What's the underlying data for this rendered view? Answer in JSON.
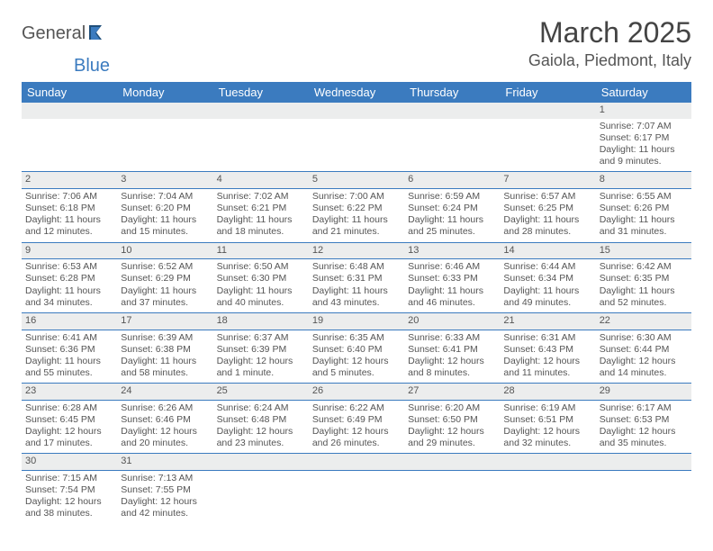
{
  "logo": {
    "text1": "General",
    "text2": "Blue"
  },
  "title": "March 2025",
  "location": "Gaiola, Piedmont, Italy",
  "colors": {
    "header_bg": "#3b7bbf",
    "header_text": "#ffffff",
    "daynum_bg": "#eceded",
    "cell_border": "#3b7bbf",
    "body_text": "#555555",
    "title_text": "#444444",
    "background": "#ffffff"
  },
  "typography": {
    "title_fontsize": 32,
    "location_fontsize": 18,
    "header_fontsize": 13,
    "cell_fontsize": 10.5,
    "font_family": "Arial"
  },
  "days_of_week": [
    "Sunday",
    "Monday",
    "Tuesday",
    "Wednesday",
    "Thursday",
    "Friday",
    "Saturday"
  ],
  "weeks": [
    [
      null,
      null,
      null,
      null,
      null,
      null,
      {
        "n": "1",
        "sunrise": "Sunrise: 7:07 AM",
        "sunset": "Sunset: 6:17 PM",
        "daylight": "Daylight: 11 hours and 9 minutes."
      }
    ],
    [
      {
        "n": "2",
        "sunrise": "Sunrise: 7:06 AM",
        "sunset": "Sunset: 6:18 PM",
        "daylight": "Daylight: 11 hours and 12 minutes."
      },
      {
        "n": "3",
        "sunrise": "Sunrise: 7:04 AM",
        "sunset": "Sunset: 6:20 PM",
        "daylight": "Daylight: 11 hours and 15 minutes."
      },
      {
        "n": "4",
        "sunrise": "Sunrise: 7:02 AM",
        "sunset": "Sunset: 6:21 PM",
        "daylight": "Daylight: 11 hours and 18 minutes."
      },
      {
        "n": "5",
        "sunrise": "Sunrise: 7:00 AM",
        "sunset": "Sunset: 6:22 PM",
        "daylight": "Daylight: 11 hours and 21 minutes."
      },
      {
        "n": "6",
        "sunrise": "Sunrise: 6:59 AM",
        "sunset": "Sunset: 6:24 PM",
        "daylight": "Daylight: 11 hours and 25 minutes."
      },
      {
        "n": "7",
        "sunrise": "Sunrise: 6:57 AM",
        "sunset": "Sunset: 6:25 PM",
        "daylight": "Daylight: 11 hours and 28 minutes."
      },
      {
        "n": "8",
        "sunrise": "Sunrise: 6:55 AM",
        "sunset": "Sunset: 6:26 PM",
        "daylight": "Daylight: 11 hours and 31 minutes."
      }
    ],
    [
      {
        "n": "9",
        "sunrise": "Sunrise: 6:53 AM",
        "sunset": "Sunset: 6:28 PM",
        "daylight": "Daylight: 11 hours and 34 minutes."
      },
      {
        "n": "10",
        "sunrise": "Sunrise: 6:52 AM",
        "sunset": "Sunset: 6:29 PM",
        "daylight": "Daylight: 11 hours and 37 minutes."
      },
      {
        "n": "11",
        "sunrise": "Sunrise: 6:50 AM",
        "sunset": "Sunset: 6:30 PM",
        "daylight": "Daylight: 11 hours and 40 minutes."
      },
      {
        "n": "12",
        "sunrise": "Sunrise: 6:48 AM",
        "sunset": "Sunset: 6:31 PM",
        "daylight": "Daylight: 11 hours and 43 minutes."
      },
      {
        "n": "13",
        "sunrise": "Sunrise: 6:46 AM",
        "sunset": "Sunset: 6:33 PM",
        "daylight": "Daylight: 11 hours and 46 minutes."
      },
      {
        "n": "14",
        "sunrise": "Sunrise: 6:44 AM",
        "sunset": "Sunset: 6:34 PM",
        "daylight": "Daylight: 11 hours and 49 minutes."
      },
      {
        "n": "15",
        "sunrise": "Sunrise: 6:42 AM",
        "sunset": "Sunset: 6:35 PM",
        "daylight": "Daylight: 11 hours and 52 minutes."
      }
    ],
    [
      {
        "n": "16",
        "sunrise": "Sunrise: 6:41 AM",
        "sunset": "Sunset: 6:36 PM",
        "daylight": "Daylight: 11 hours and 55 minutes."
      },
      {
        "n": "17",
        "sunrise": "Sunrise: 6:39 AM",
        "sunset": "Sunset: 6:38 PM",
        "daylight": "Daylight: 11 hours and 58 minutes."
      },
      {
        "n": "18",
        "sunrise": "Sunrise: 6:37 AM",
        "sunset": "Sunset: 6:39 PM",
        "daylight": "Daylight: 12 hours and 1 minute."
      },
      {
        "n": "19",
        "sunrise": "Sunrise: 6:35 AM",
        "sunset": "Sunset: 6:40 PM",
        "daylight": "Daylight: 12 hours and 5 minutes."
      },
      {
        "n": "20",
        "sunrise": "Sunrise: 6:33 AM",
        "sunset": "Sunset: 6:41 PM",
        "daylight": "Daylight: 12 hours and 8 minutes."
      },
      {
        "n": "21",
        "sunrise": "Sunrise: 6:31 AM",
        "sunset": "Sunset: 6:43 PM",
        "daylight": "Daylight: 12 hours and 11 minutes."
      },
      {
        "n": "22",
        "sunrise": "Sunrise: 6:30 AM",
        "sunset": "Sunset: 6:44 PM",
        "daylight": "Daylight: 12 hours and 14 minutes."
      }
    ],
    [
      {
        "n": "23",
        "sunrise": "Sunrise: 6:28 AM",
        "sunset": "Sunset: 6:45 PM",
        "daylight": "Daylight: 12 hours and 17 minutes."
      },
      {
        "n": "24",
        "sunrise": "Sunrise: 6:26 AM",
        "sunset": "Sunset: 6:46 PM",
        "daylight": "Daylight: 12 hours and 20 minutes."
      },
      {
        "n": "25",
        "sunrise": "Sunrise: 6:24 AM",
        "sunset": "Sunset: 6:48 PM",
        "daylight": "Daylight: 12 hours and 23 minutes."
      },
      {
        "n": "26",
        "sunrise": "Sunrise: 6:22 AM",
        "sunset": "Sunset: 6:49 PM",
        "daylight": "Daylight: 12 hours and 26 minutes."
      },
      {
        "n": "27",
        "sunrise": "Sunrise: 6:20 AM",
        "sunset": "Sunset: 6:50 PM",
        "daylight": "Daylight: 12 hours and 29 minutes."
      },
      {
        "n": "28",
        "sunrise": "Sunrise: 6:19 AM",
        "sunset": "Sunset: 6:51 PM",
        "daylight": "Daylight: 12 hours and 32 minutes."
      },
      {
        "n": "29",
        "sunrise": "Sunrise: 6:17 AM",
        "sunset": "Sunset: 6:53 PM",
        "daylight": "Daylight: 12 hours and 35 minutes."
      }
    ],
    [
      {
        "n": "30",
        "sunrise": "Sunrise: 7:15 AM",
        "sunset": "Sunset: 7:54 PM",
        "daylight": "Daylight: 12 hours and 38 minutes."
      },
      {
        "n": "31",
        "sunrise": "Sunrise: 7:13 AM",
        "sunset": "Sunset: 7:55 PM",
        "daylight": "Daylight: 12 hours and 42 minutes."
      },
      null,
      null,
      null,
      null,
      null
    ]
  ]
}
